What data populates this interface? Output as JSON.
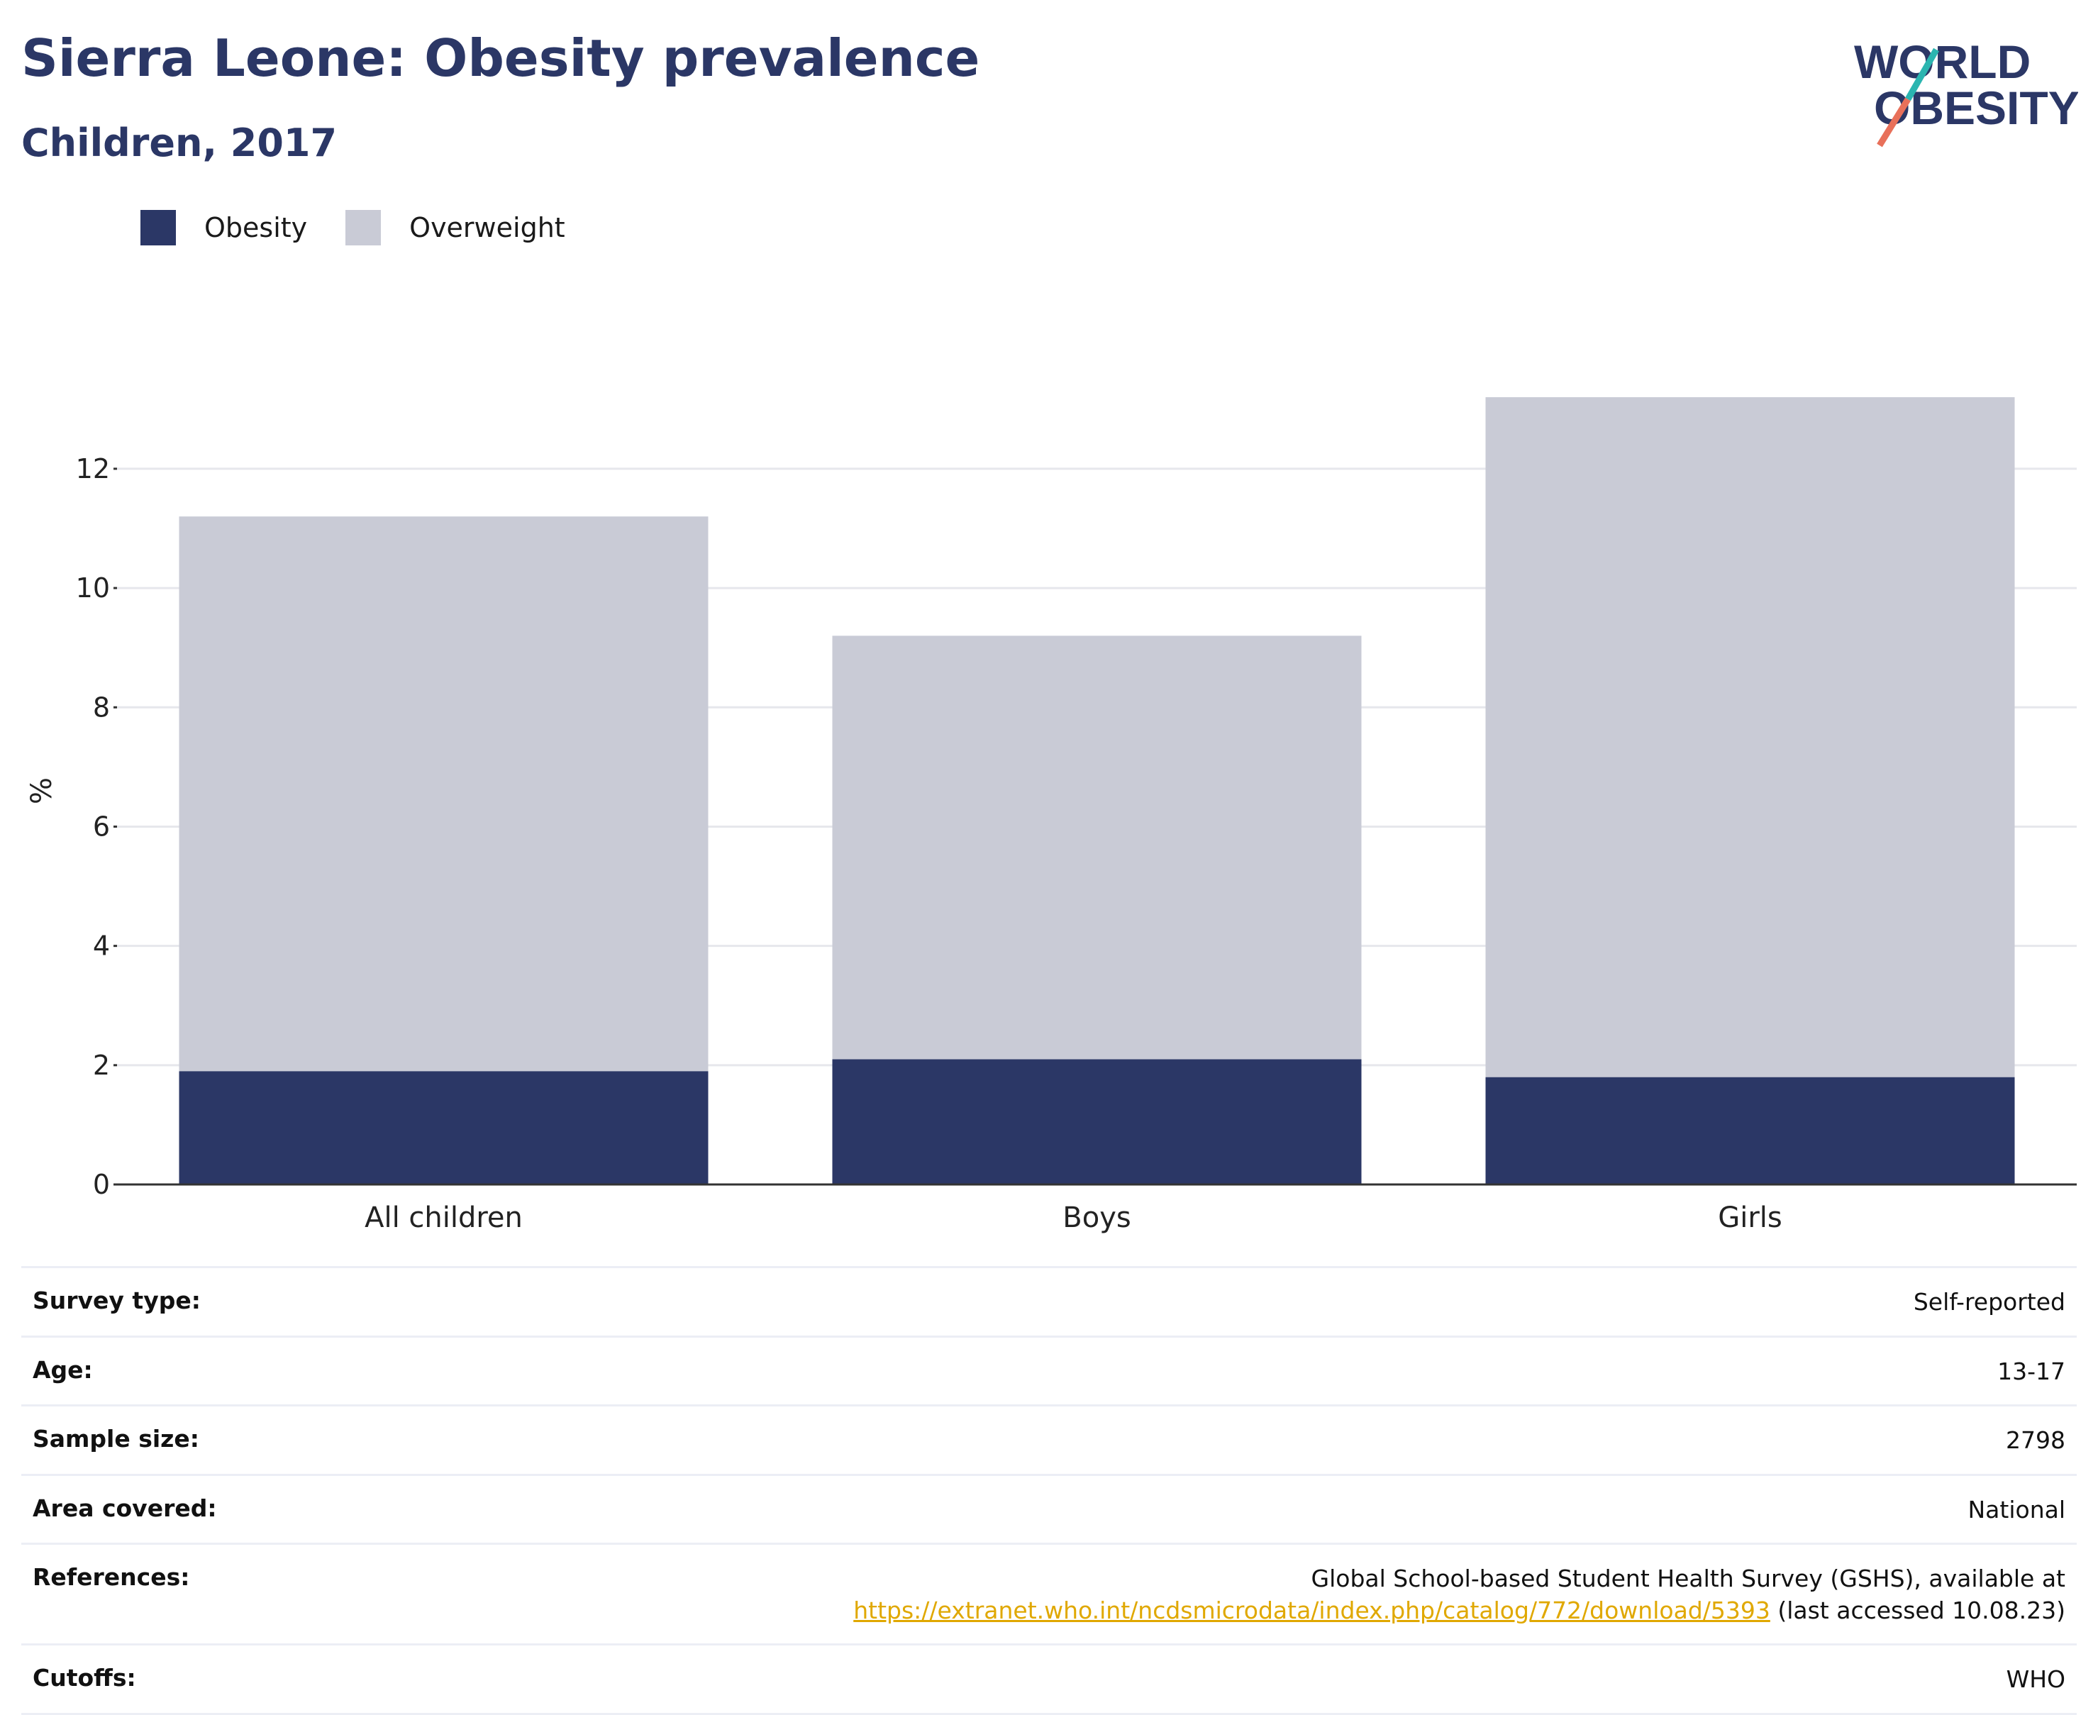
{
  "header": {
    "title": "Sierra Leone: Obesity prevalence",
    "subtitle": "Children, 2017"
  },
  "logo": {
    "line1": "WORLD",
    "line2": "OBESITY",
    "colors": {
      "text": "#2b3766",
      "slash_teal": "#2bb5b0",
      "slash_coral": "#e8705a"
    }
  },
  "legend": {
    "items": [
      {
        "label": "Obesity",
        "color": "#2b3766"
      },
      {
        "label": "Overweight",
        "color": "#c9cbd6"
      }
    ]
  },
  "chart_data": {
    "type": "bar",
    "stacked": true,
    "categories": [
      "All children",
      "Boys",
      "Girls"
    ],
    "series": [
      {
        "name": "Obesity",
        "color": "#2b3766",
        "values": [
          1.9,
          2.1,
          1.8
        ]
      },
      {
        "name": "Overweight",
        "color": "#c9cbd6",
        "values": [
          9.3,
          7.1,
          11.4
        ]
      }
    ],
    "ylabel": "%",
    "ylim": [
      0,
      13.2
    ],
    "yticks": [
      0,
      2,
      4,
      6,
      8,
      10,
      12
    ],
    "grid": true,
    "legend_position": "top-left"
  },
  "info_table": {
    "rows": [
      {
        "label": "Survey type:",
        "value": "Self-reported"
      },
      {
        "label": "Age:",
        "value": "13-17"
      },
      {
        "label": "Sample size:",
        "value": "2798"
      },
      {
        "label": "Area covered:",
        "value": "National"
      },
      {
        "label": "References:",
        "value_line1": "Global School-based Student Health Survey (GSHS), available at",
        "link": "https://extranet.who.int/ncdsmicrodata/index.php/catalog/772/download/5393",
        "value_suffix": " (last accessed 10.08.23)"
      },
      {
        "label": "Cutoffs:",
        "value": "WHO"
      }
    ]
  }
}
